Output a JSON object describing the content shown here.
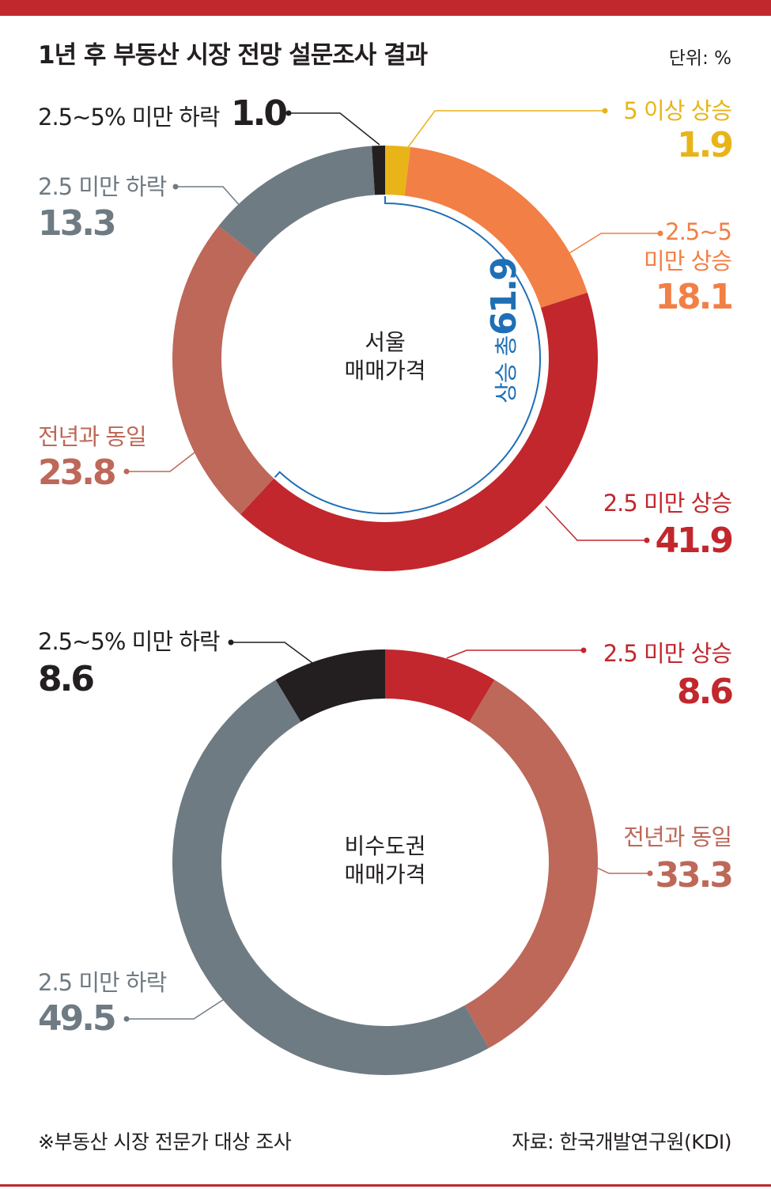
{
  "title": "1년 후 부동산 시장 전망 설문조사 결과",
  "unit": "단위: %",
  "footnote": "※부동산 시장 전문가 대상 조사",
  "source": "자료: 한국개발연구원(KDI)",
  "colors": {
    "accent": "#c1282d",
    "rise5plus": "#e8b418",
    "rise2_5to5": "#f27f45",
    "riseUnder2_5": "#c1272d",
    "same": "#bd6859",
    "fallUnder2_5": "#6f7b83",
    "fall2_5to5": "#231f20",
    "total_rise": "#1f6fb6"
  },
  "chart_data": [
    {
      "type": "pie",
      "center_label": [
        "서울",
        "매매가격"
      ],
      "total_rise_label": "상승 총",
      "total_rise_value": "61.9",
      "slices": [
        {
          "label": "5 이상 상승",
          "value": 1.9,
          "value_text": "1.9",
          "color": "#e8b418"
        },
        {
          "label": "2.5~5 미만 상승",
          "label_lines": [
            "2.5~5",
            "미만 상승"
          ],
          "value": 18.1,
          "value_text": "18.1",
          "color": "#f27f45"
        },
        {
          "label": "2.5 미만 상승",
          "value": 41.9,
          "value_text": "41.9",
          "color": "#c1272d"
        },
        {
          "label": "전년과 동일",
          "value": 23.8,
          "value_text": "23.8",
          "color": "#bd6859"
        },
        {
          "label": "2.5 미만 하락",
          "value": 13.3,
          "value_text": "13.3",
          "color": "#6f7b83"
        },
        {
          "label": "2.5~5% 미만 하락",
          "value": 1.0,
          "value_text": "1.0",
          "color": "#231f20"
        }
      ]
    },
    {
      "type": "pie",
      "center_label": [
        "비수도권",
        "매매가격"
      ],
      "slices": [
        {
          "label": "2.5 미만 상승",
          "value": 8.6,
          "value_text": "8.6",
          "color": "#c1272d"
        },
        {
          "label": "전년과 동일",
          "value": 33.3,
          "value_text": "33.3",
          "color": "#bd6859"
        },
        {
          "label": "2.5 미만 하락",
          "value": 49.5,
          "value_text": "49.5",
          "color": "#6f7b83"
        },
        {
          "label": "2.5~5% 미만 하락",
          "value": 8.6,
          "value_text": "8.6",
          "color": "#231f20"
        }
      ]
    }
  ]
}
